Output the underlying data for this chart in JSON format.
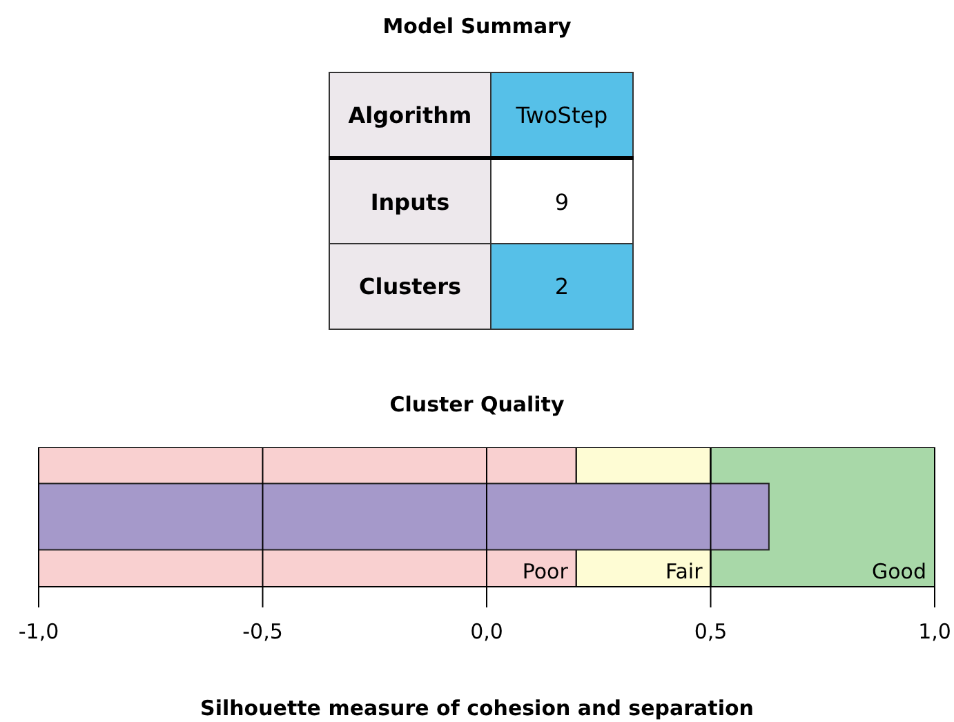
{
  "chart_data": [
    {
      "type": "other",
      "title": "Model Summary",
      "annotations": [
        "Algorithm",
        "TwoStep",
        "Inputs",
        "9",
        "Clusters",
        "2"
      ]
    },
    {
      "type": "bar",
      "orientation": "horizontal",
      "title": "Cluster Quality",
      "xlabel": "Silhouette measure of cohesion and separation",
      "categories": [
        null
      ],
      "base": [
        -1
      ],
      "values": [
        1.63
      ],
      "color": "#a599ca",
      "xlim": [
        -1,
        1
      ],
      "xticks": [
        {
          "value": -1,
          "label": "-1,0"
        },
        {
          "value": -0.5,
          "label": "-0,5"
        },
        {
          "value": 0,
          "label": "0,0"
        },
        {
          "value": 0.5,
          "label": "0,5"
        },
        {
          "value": 1,
          "label": "1,0"
        }
      ],
      "grid": "x",
      "bands": [
        {
          "axis": "x",
          "from": -1,
          "to": 0.2,
          "label": "Poor",
          "color": "#f9d0d0"
        },
        {
          "axis": "x",
          "from": 0.2,
          "to": 0.5,
          "label": "Fair",
          "color": "#fefcd4"
        },
        {
          "axis": "x",
          "from": 0.5,
          "to": 1,
          "label": "Good",
          "color": "#a8d8a8"
        }
      ]
    }
  ]
}
